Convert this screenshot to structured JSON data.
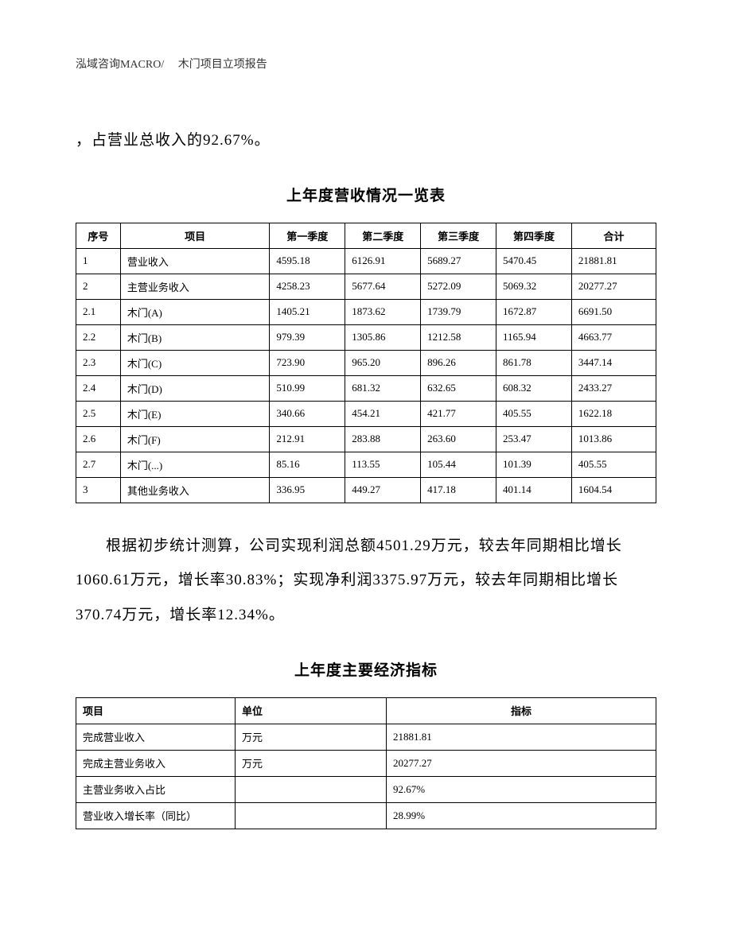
{
  "header": {
    "text": "泓域咨询MACRO/　 木门项目立项报告"
  },
  "para1": "，占营业总收入的92.67%。",
  "table1": {
    "title": "上年度营收情况一览表",
    "columns": [
      "序号",
      "项目",
      "第一季度",
      "第二季度",
      "第三季度",
      "第四季度",
      "合计"
    ],
    "rows": [
      [
        "1",
        "营业收入",
        "4595.18",
        "6126.91",
        "5689.27",
        "5470.45",
        "21881.81"
      ],
      [
        "2",
        "主营业务收入",
        "4258.23",
        "5677.64",
        "5272.09",
        "5069.32",
        "20277.27"
      ],
      [
        "2.1",
        "木门(A)",
        "1405.21",
        "1873.62",
        "1739.79",
        "1672.87",
        "6691.50"
      ],
      [
        "2.2",
        "木门(B)",
        "979.39",
        "1305.86",
        "1212.58",
        "1165.94",
        "4663.77"
      ],
      [
        "2.3",
        "木门(C)",
        "723.90",
        "965.20",
        "896.26",
        "861.78",
        "3447.14"
      ],
      [
        "2.4",
        "木门(D)",
        "510.99",
        "681.32",
        "632.65",
        "608.32",
        "2433.27"
      ],
      [
        "2.5",
        "木门(E)",
        "340.66",
        "454.21",
        "421.77",
        "405.55",
        "1622.18"
      ],
      [
        "2.6",
        "木门(F)",
        "212.91",
        "283.88",
        "263.60",
        "253.47",
        "1013.86"
      ],
      [
        "2.7",
        "木门(...)",
        "85.16",
        "113.55",
        "105.44",
        "101.39",
        "405.55"
      ],
      [
        "3",
        "其他业务收入",
        "336.95",
        "449.27",
        "417.18",
        "401.14",
        "1604.54"
      ]
    ]
  },
  "para2": "根据初步统计测算，公司实现利润总额4501.29万元，较去年同期相比增长1060.61万元，增长率30.83%；实现净利润3375.97万元，较去年同期相比增长370.74万元，增长率12.34%。",
  "table2": {
    "title": "上年度主要经济指标",
    "columns": [
      "项目",
      "单位",
      "指标"
    ],
    "rows": [
      [
        "完成营业收入",
        "万元",
        "21881.81"
      ],
      [
        "完成主营业务收入",
        "万元",
        "20277.27"
      ],
      [
        "主营业务收入占比",
        "",
        "92.67%"
      ],
      [
        "营业收入增长率（同比）",
        "",
        "28.99%"
      ]
    ]
  }
}
